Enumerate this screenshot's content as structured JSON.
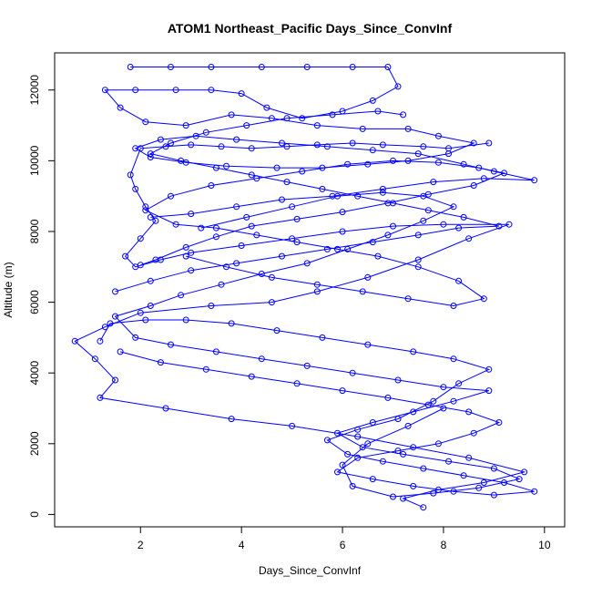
{
  "chart_data": {
    "type": "scatter",
    "title": "ATOM1 Northeast_Pacific Days_Since_ConvInf",
    "xlabel": "Days_Since_ConvInf",
    "ylabel": "Altitude (m)",
    "xlim": [
      0.3,
      10.4
    ],
    "ylim": [
      -350,
      13050
    ],
    "x_ticks": [
      2,
      4,
      6,
      8,
      10
    ],
    "y_ticks": [
      0,
      2000,
      4000,
      6000,
      8000,
      10000,
      12000
    ],
    "grid": false,
    "legend": "none",
    "marker": "open-circle",
    "connected": true,
    "series_color": "#0000ff",
    "series": [
      {
        "points": [
          [
            8.9,
            10500
          ],
          [
            8.1,
            10350
          ],
          [
            7.6,
            10400
          ],
          [
            6.8,
            10450
          ],
          [
            6.2,
            10500
          ],
          [
            5.5,
            10450
          ],
          [
            4.9,
            10400
          ],
          [
            4.2,
            10350
          ],
          [
            3.6,
            10400
          ],
          [
            3.0,
            10450
          ],
          [
            2.5,
            10400
          ],
          [
            2.0,
            10350
          ],
          [
            1.8,
            9600
          ],
          [
            1.9,
            9200
          ],
          [
            2.1,
            8700
          ],
          [
            2.3,
            8300
          ],
          [
            2.0,
            7800
          ],
          [
            1.7,
            7300
          ],
          [
            1.9,
            7000
          ],
          [
            2.4,
            7200
          ],
          [
            3.0,
            7400
          ],
          [
            4.0,
            7600
          ],
          [
            5.0,
            7800
          ],
          [
            6.0,
            8000
          ],
          [
            7.0,
            8150
          ],
          [
            8.0,
            8200
          ],
          [
            9.3,
            8200
          ],
          [
            8.5,
            7800
          ],
          [
            7.5,
            7200
          ],
          [
            6.5,
            6700
          ],
          [
            5.5,
            6300
          ],
          [
            4.6,
            6000
          ],
          [
            3.4,
            5900
          ],
          [
            2.0,
            5700
          ],
          [
            1.3,
            5300
          ],
          [
            0.7,
            4900
          ],
          [
            1.1,
            4400
          ],
          [
            1.5,
            3800
          ],
          [
            1.2,
            3300
          ],
          [
            2.5,
            3000
          ],
          [
            3.8,
            2700
          ],
          [
            5.0,
            2500
          ],
          [
            6.3,
            2200
          ],
          [
            7.4,
            1900
          ],
          [
            8.5,
            1600
          ],
          [
            9.6,
            1200
          ],
          [
            8.8,
            900
          ],
          [
            7.9,
            700
          ],
          [
            7.2,
            450
          ],
          [
            7.6,
            200
          ]
        ]
      },
      {
        "points": [
          [
            1.8,
            12650
          ],
          [
            2.6,
            12650
          ],
          [
            3.4,
            12650
          ],
          [
            4.4,
            12650
          ],
          [
            5.3,
            12650
          ],
          [
            6.2,
            12650
          ],
          [
            6.9,
            12650
          ],
          [
            7.1,
            12100
          ],
          [
            6.6,
            11700
          ],
          [
            6.0,
            11400
          ],
          [
            5.2,
            11200
          ],
          [
            4.5,
            11500
          ],
          [
            4.0,
            11900
          ],
          [
            3.4,
            12000
          ],
          [
            2.7,
            12000
          ],
          [
            1.9,
            12000
          ],
          [
            1.3,
            12000
          ],
          [
            1.6,
            11500
          ],
          [
            2.1,
            11100
          ],
          [
            2.9,
            11000
          ],
          [
            3.8,
            11300
          ],
          [
            4.6,
            11200
          ],
          [
            5.5,
            11000
          ],
          [
            6.4,
            10900
          ],
          [
            7.3,
            10900
          ],
          [
            7.9,
            10700
          ],
          [
            8.6,
            10500
          ],
          [
            8.1,
            10200
          ],
          [
            7.3,
            10000
          ],
          [
            6.5,
            9900
          ],
          [
            5.6,
            9800
          ],
          [
            4.7,
            9800
          ],
          [
            3.7,
            9850
          ],
          [
            2.9,
            9950
          ],
          [
            2.2,
            10100
          ],
          [
            1.9,
            10350
          ],
          [
            2.4,
            10600
          ],
          [
            3.1,
            10700
          ],
          [
            3.9,
            10600
          ],
          [
            4.8,
            10500
          ],
          [
            5.7,
            10400
          ],
          [
            6.6,
            10300
          ],
          [
            7.5,
            10200
          ],
          [
            8.4,
            9900
          ],
          [
            9.0,
            9700
          ],
          [
            9.8,
            9450
          ],
          [
            8.8,
            9500
          ],
          [
            7.8,
            9400
          ],
          [
            6.8,
            9200
          ],
          [
            5.8,
            9000
          ],
          [
            4.8,
            8900
          ],
          [
            3.9,
            8700
          ],
          [
            3.0,
            8500
          ],
          [
            2.2,
            8400
          ]
        ]
      },
      {
        "points": [
          [
            3.2,
            8100
          ],
          [
            4.1,
            8400
          ],
          [
            5.0,
            8700
          ],
          [
            5.9,
            9000
          ],
          [
            6.8,
            9100
          ],
          [
            7.6,
            9000
          ],
          [
            8.2,
            8700
          ],
          [
            7.6,
            8300
          ],
          [
            6.9,
            7900
          ],
          [
            6.1,
            7500
          ],
          [
            5.3,
            7100
          ],
          [
            4.4,
            6800
          ],
          [
            3.6,
            6500
          ],
          [
            2.8,
            6200
          ],
          [
            2.2,
            5900
          ],
          [
            1.5,
            5600
          ],
          [
            1.9,
            5000
          ],
          [
            2.6,
            4800
          ],
          [
            3.5,
            4600
          ],
          [
            4.4,
            4400
          ],
          [
            5.3,
            4200
          ],
          [
            6.2,
            4000
          ],
          [
            7.1,
            3800
          ],
          [
            8.0,
            3600
          ],
          [
            8.9,
            3500
          ],
          [
            8.2,
            3200
          ],
          [
            7.4,
            2900
          ],
          [
            6.6,
            2600
          ],
          [
            5.9,
            2300
          ],
          [
            6.4,
            1900
          ],
          [
            7.2,
            1700
          ],
          [
            8.1,
            1500
          ],
          [
            9.0,
            1300
          ],
          [
            9.5,
            1000
          ],
          [
            8.7,
            750
          ],
          [
            7.8,
            600
          ],
          [
            7.0,
            500
          ],
          [
            6.2,
            800
          ],
          [
            6.0,
            1400
          ],
          [
            6.5,
            2000
          ],
          [
            7.3,
            2500
          ],
          [
            8.0,
            3000
          ]
        ]
      },
      {
        "points": [
          [
            2.9,
            7300
          ],
          [
            3.7,
            7000
          ],
          [
            4.6,
            6700
          ],
          [
            5.5,
            6500
          ],
          [
            6.4,
            6300
          ],
          [
            7.3,
            6100
          ],
          [
            8.2,
            5900
          ],
          [
            8.8,
            6100
          ],
          [
            8.3,
            6600
          ],
          [
            7.5,
            7000
          ],
          [
            6.7,
            7300
          ],
          [
            5.9,
            7500
          ],
          [
            5.1,
            7700
          ],
          [
            4.3,
            7900
          ],
          [
            3.5,
            8100
          ],
          [
            2.7,
            8200
          ],
          [
            2.1,
            8600
          ],
          [
            2.6,
            9000
          ],
          [
            3.4,
            9300
          ],
          [
            4.3,
            9500
          ],
          [
            5.2,
            9700
          ],
          [
            6.1,
            9900
          ],
          [
            7.0,
            10000
          ],
          [
            7.9,
            9950
          ],
          [
            8.7,
            9800
          ],
          [
            9.2,
            9650
          ],
          [
            8.6,
            9300
          ],
          [
            7.7,
            9050
          ],
          [
            6.9,
            8800
          ],
          [
            6.0,
            8550
          ],
          [
            5.1,
            8350
          ],
          [
            4.2,
            8150
          ],
          [
            3.5,
            7850
          ],
          [
            2.9,
            7550
          ],
          [
            2.3,
            7200
          ],
          [
            2.0,
            7050
          ]
        ]
      },
      {
        "points": [
          [
            1.6,
            4600
          ],
          [
            2.4,
            4300
          ],
          [
            3.3,
            4100
          ],
          [
            4.2,
            3900
          ],
          [
            5.1,
            3700
          ],
          [
            6.0,
            3500
          ],
          [
            6.9,
            3300
          ],
          [
            7.7,
            3100
          ],
          [
            8.5,
            2900
          ],
          [
            9.1,
            2600
          ],
          [
            8.6,
            2300
          ],
          [
            7.9,
            2000
          ],
          [
            7.1,
            1800
          ],
          [
            6.3,
            1600
          ],
          [
            5.9,
            1200
          ],
          [
            6.6,
            1000
          ],
          [
            7.4,
            800
          ],
          [
            8.2,
            650
          ],
          [
            9.0,
            550
          ],
          [
            9.8,
            650
          ],
          [
            9.2,
            900
          ],
          [
            8.4,
            1100
          ],
          [
            7.6,
            1300
          ],
          [
            6.8,
            1500
          ],
          [
            6.1,
            1700
          ],
          [
            5.7,
            2100
          ],
          [
            6.3,
            2400
          ],
          [
            7.1,
            2700
          ],
          [
            7.8,
            3200
          ],
          [
            8.3,
            3700
          ],
          [
            8.9,
            4100
          ],
          [
            8.2,
            4400
          ],
          [
            7.4,
            4600
          ],
          [
            6.5,
            4800
          ],
          [
            5.6,
            5000
          ],
          [
            4.7,
            5200
          ],
          [
            3.8,
            5400
          ],
          [
            2.9,
            5500
          ],
          [
            2.1,
            5500
          ],
          [
            1.4,
            5400
          ],
          [
            1.2,
            4900
          ]
        ]
      },
      {
        "points": [
          [
            1.5,
            6300
          ],
          [
            2.2,
            6600
          ],
          [
            3.0,
            6900
          ],
          [
            3.9,
            7100
          ],
          [
            4.8,
            7300
          ],
          [
            5.7,
            7500
          ],
          [
            6.6,
            7700
          ],
          [
            7.5,
            7900
          ],
          [
            8.3,
            8100
          ],
          [
            9.1,
            8150
          ],
          [
            8.4,
            8400
          ],
          [
            7.7,
            8600
          ],
          [
            7.0,
            8800
          ],
          [
            6.3,
            9000
          ],
          [
            5.6,
            9200
          ],
          [
            4.9,
            9400
          ],
          [
            4.2,
            9600
          ],
          [
            3.5,
            9800
          ],
          [
            2.8,
            10000
          ],
          [
            2.2,
            10200
          ],
          [
            2.6,
            10500
          ],
          [
            3.3,
            10800
          ],
          [
            4.1,
            11000
          ],
          [
            4.9,
            11200
          ],
          [
            5.8,
            11300
          ],
          [
            6.7,
            11400
          ],
          [
            7.2,
            11300
          ]
        ]
      }
    ]
  }
}
